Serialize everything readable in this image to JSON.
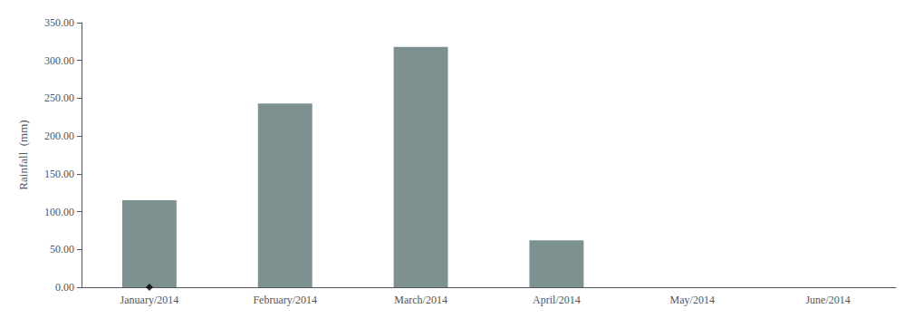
{
  "chart_data": {
    "type": "bar",
    "categories": [
      "January/2014",
      "February/2014",
      "March/2014",
      "April/2014",
      "May/2014",
      "June/2014"
    ],
    "series": [
      {
        "type": "bar",
        "color": "#7d9190",
        "values": [
          115.0,
          243.0,
          318.0,
          62.0,
          0.0,
          0.0
        ]
      },
      {
        "type": "scatter",
        "marker": "diamond",
        "color": "#000000",
        "values": [
          0.0,
          null,
          null,
          null,
          null,
          null
        ]
      }
    ],
    "ylabel": "Rainfall  (mm)",
    "ylim": [
      0,
      350
    ],
    "yticks": [
      {
        "value": 0,
        "label": "0.00"
      },
      {
        "value": 50,
        "label": "50.00"
      },
      {
        "value": 100,
        "label": "100.00"
      },
      {
        "value": 150,
        "label": "150.00"
      },
      {
        "value": 200,
        "label": "200.00"
      },
      {
        "value": 250,
        "label": "250.00"
      },
      {
        "value": 300,
        "label": "300.00"
      },
      {
        "value": 350,
        "label": "350.00"
      }
    ],
    "grid": false
  }
}
